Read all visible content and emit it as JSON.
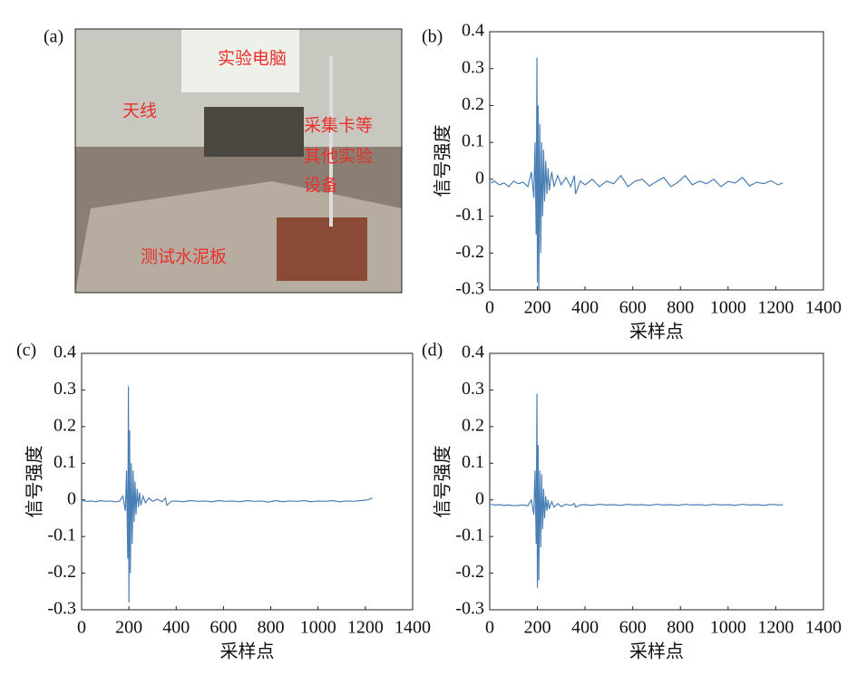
{
  "photo": {
    "panel_label": "(a)",
    "labels": [
      "实验电脑",
      "天线",
      "测试水泥板"
    ],
    "equipment_label_lines": [
      "采集卡等",
      "其他实验",
      "设备"
    ]
  },
  "chart_data": [
    {
      "type": "line",
      "panel_label": "(b)",
      "x_label": "采样点",
      "y_label": "信号强度",
      "xlim": [
        0,
        1400
      ],
      "xticks": [
        0,
        200,
        400,
        600,
        800,
        1000,
        1200,
        1400
      ],
      "ylim": [
        -0.3,
        0.4
      ],
      "yticks": [
        -0.3,
        -0.2,
        -0.1,
        0,
        0.1,
        0.2,
        0.3,
        0.4
      ],
      "x": [
        5,
        20,
        40,
        60,
        80,
        100,
        120,
        140,
        160,
        175,
        185,
        190,
        195,
        198,
        200,
        203,
        206,
        210,
        214,
        218,
        222,
        226,
        230,
        235,
        240,
        245,
        250,
        260,
        270,
        285,
        300,
        320,
        340,
        355,
        360,
        380,
        400,
        430,
        460,
        490,
        520,
        550,
        580,
        610,
        640,
        670,
        700,
        730,
        760,
        790,
        820,
        850,
        880,
        910,
        940,
        970,
        1000,
        1030,
        1060,
        1090,
        1120,
        1150,
        1180,
        1210,
        1230
      ],
      "series": [
        {
          "color": "#4a7fb5",
          "values": [
            -0.01,
            -0.005,
            -0.015,
            -0.01,
            -0.02,
            -0.005,
            -0.012,
            -0.008,
            -0.02,
            0.02,
            -0.05,
            0.1,
            -0.15,
            0.33,
            -0.28,
            0.2,
            -0.3,
            0.15,
            -0.2,
            0.1,
            -0.1,
            0.08,
            -0.06,
            0.05,
            -0.04,
            0.03,
            -0.03,
            0.02,
            -0.02,
            0.01,
            -0.015,
            0.005,
            -0.02,
            0.01,
            -0.04,
            -0.005,
            -0.015,
            0.0,
            -0.02,
            -0.005,
            -0.012,
            0.01,
            -0.02,
            -0.005,
            0.0,
            -0.018,
            -0.006,
            0.005,
            -0.02,
            -0.008,
            0.01,
            -0.015,
            -0.005,
            -0.012,
            0.0,
            -0.02,
            -0.006,
            -0.01,
            0.005,
            -0.018,
            -0.008,
            -0.012,
            -0.004,
            -0.015,
            -0.01
          ]
        }
      ]
    },
    {
      "type": "line",
      "panel_label": "(c)",
      "x_label": "采样点",
      "y_label": "信号强度",
      "xlim": [
        0,
        1400
      ],
      "xticks": [
        0,
        200,
        400,
        600,
        800,
        1000,
        1200,
        1400
      ],
      "ylim": [
        -0.3,
        0.4
      ],
      "yticks": [
        -0.3,
        -0.2,
        -0.1,
        0,
        0.1,
        0.2,
        0.3,
        0.4
      ],
      "x": [
        5,
        20,
        40,
        60,
        80,
        100,
        120,
        140,
        160,
        175,
        185,
        190,
        195,
        198,
        200,
        203,
        206,
        210,
        214,
        218,
        222,
        226,
        230,
        235,
        240,
        245,
        250,
        260,
        270,
        285,
        300,
        320,
        340,
        355,
        360,
        380,
        400,
        430,
        460,
        490,
        520,
        550,
        580,
        610,
        640,
        670,
        700,
        730,
        760,
        790,
        820,
        850,
        880,
        910,
        940,
        970,
        1000,
        1030,
        1060,
        1090,
        1120,
        1150,
        1180,
        1210,
        1230
      ],
      "series": [
        {
          "color": "#4a7fb5",
          "values": [
            -0.002,
            -0.004,
            -0.003,
            -0.005,
            -0.002,
            -0.004,
            -0.003,
            -0.005,
            -0.004,
            0.01,
            -0.03,
            0.08,
            -0.16,
            0.31,
            -0.28,
            0.19,
            -0.2,
            0.1,
            -0.12,
            0.08,
            -0.06,
            0.05,
            -0.04,
            0.03,
            -0.02,
            0.02,
            -0.015,
            0.01,
            -0.008,
            0.005,
            -0.004,
            0.002,
            -0.005,
            0.005,
            -0.015,
            -0.004,
            -0.003,
            -0.005,
            -0.002,
            -0.004,
            -0.003,
            -0.005,
            -0.002,
            -0.004,
            -0.003,
            -0.005,
            -0.002,
            -0.004,
            -0.003,
            -0.006,
            -0.002,
            -0.005,
            -0.003,
            -0.004,
            -0.002,
            -0.005,
            -0.003,
            -0.004,
            -0.002,
            -0.005,
            -0.003,
            -0.004,
            -0.002,
            0.0,
            0.005
          ]
        }
      ]
    },
    {
      "type": "line",
      "panel_label": "(d)",
      "x_label": "采样点",
      "y_label": "信号强度",
      "xlim": [
        0,
        1400
      ],
      "xticks": [
        0,
        200,
        400,
        600,
        800,
        1000,
        1200,
        1400
      ],
      "ylim": [
        -0.3,
        0.4
      ],
      "yticks": [
        -0.3,
        -0.2,
        -0.1,
        0,
        0.1,
        0.2,
        0.3,
        0.4
      ],
      "x": [
        5,
        20,
        40,
        60,
        80,
        100,
        120,
        140,
        160,
        175,
        185,
        190,
        195,
        198,
        200,
        203,
        206,
        210,
        214,
        218,
        222,
        226,
        230,
        235,
        240,
        245,
        250,
        260,
        270,
        285,
        300,
        320,
        340,
        355,
        360,
        380,
        400,
        430,
        460,
        490,
        520,
        550,
        580,
        610,
        640,
        670,
        700,
        730,
        760,
        790,
        820,
        850,
        880,
        910,
        940,
        970,
        1000,
        1030,
        1060,
        1090,
        1120,
        1150,
        1180,
        1210,
        1230
      ],
      "series": [
        {
          "color": "#4a7fb5",
          "values": [
            -0.012,
            -0.014,
            -0.013,
            -0.015,
            -0.014,
            -0.016,
            -0.015,
            -0.014,
            -0.016,
            0.0,
            -0.04,
            0.08,
            -0.12,
            0.29,
            -0.24,
            0.15,
            -0.22,
            0.08,
            -0.13,
            0.07,
            -0.08,
            0.03,
            -0.05,
            0.01,
            -0.03,
            0.0,
            -0.025,
            -0.005,
            -0.02,
            -0.01,
            -0.018,
            -0.012,
            -0.015,
            -0.01,
            -0.02,
            -0.014,
            -0.013,
            -0.015,
            -0.012,
            -0.014,
            -0.013,
            -0.015,
            -0.012,
            -0.014,
            -0.013,
            -0.015,
            -0.012,
            -0.014,
            -0.013,
            -0.015,
            -0.012,
            -0.014,
            -0.013,
            -0.015,
            -0.012,
            -0.014,
            -0.013,
            -0.015,
            -0.012,
            -0.014,
            -0.013,
            -0.015,
            -0.012,
            -0.014,
            -0.013
          ]
        }
      ]
    }
  ]
}
